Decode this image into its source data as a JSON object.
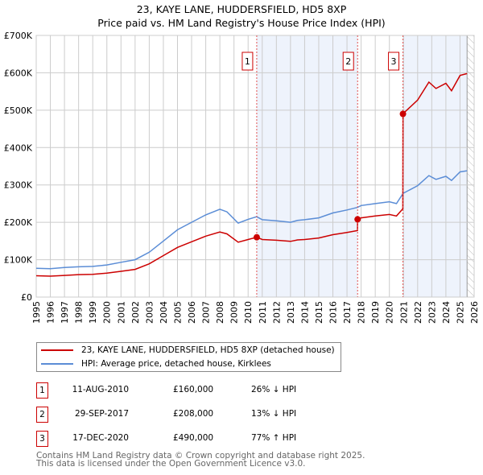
{
  "title": "23, KAYE LANE, HUDDERSFIELD, HD5 8XP",
  "subtitle": "Price paid vs. HM Land Registry's House Price Index (HPI)",
  "colors": {
    "property": "#cc0000",
    "hpi": "#5b8dd6",
    "shade": "#eef3fc",
    "grid": "#cccccc"
  },
  "chart_data": {
    "type": "line",
    "title": "23, KAYE LANE, HUDDERSFIELD, HD5 8XP — Price paid vs. HM Land Registry's House Price Index (HPI)",
    "xlabel": "",
    "ylabel": "",
    "xlim": [
      1995,
      2026
    ],
    "ylim": [
      0,
      700000
    ],
    "grid": true,
    "legend_position": "below",
    "x_ticks": [
      "1995",
      "1996",
      "1997",
      "1998",
      "1999",
      "2000",
      "2001",
      "2002",
      "2003",
      "2004",
      "2005",
      "2006",
      "2007",
      "2008",
      "2009",
      "2010",
      "2011",
      "2012",
      "2013",
      "2014",
      "2015",
      "2016",
      "2017",
      "2018",
      "2019",
      "2020",
      "2021",
      "2022",
      "2023",
      "2024",
      "2025",
      "2026"
    ],
    "y_ticks": [
      {
        "value": 0,
        "label": "£0"
      },
      {
        "value": 100000,
        "label": "£100K"
      },
      {
        "value": 200000,
        "label": "£200K"
      },
      {
        "value": 300000,
        "label": "£300K"
      },
      {
        "value": 400000,
        "label": "£400K"
      },
      {
        "value": 500000,
        "label": "£500K"
      },
      {
        "value": 600000,
        "label": "£600K"
      },
      {
        "value": 700000,
        "label": "£700K"
      }
    ],
    "shaded_ranges": [
      [
        2010.61,
        2017.75
      ],
      [
        2020.96,
        2025.5
      ]
    ],
    "hatched_from": 2025.5,
    "series": [
      {
        "name": "23, KAYE LANE, HUDDERSFIELD, HD5 8XP (detached house)",
        "color": "#cc0000",
        "x": [
          1995,
          1996,
          1997,
          1998,
          1999,
          2000,
          2001,
          2002,
          2003,
          2004,
          2005,
          2006,
          2007,
          2008,
          2008.5,
          2009.3,
          2010,
          2010.61,
          2011,
          2012,
          2013,
          2013.5,
          2014,
          2015,
          2016,
          2017,
          2017.74,
          2017.75,
          2018,
          2019,
          2020,
          2020.5,
          2020.95,
          2020.96,
          2021,
          2022,
          2022.8,
          2023.3,
          2024,
          2024.4,
          2025,
          2025.5
        ],
        "y": [
          57000,
          56000,
          58000,
          60000,
          61000,
          64000,
          69000,
          74000,
          89000,
          111000,
          133000,
          148000,
          163000,
          174000,
          169000,
          147000,
          154000,
          160000,
          154000,
          152000,
          149000,
          153000,
          154000,
          158000,
          167000,
          173000,
          178000,
          208000,
          212000,
          217000,
          221000,
          217000,
          236000,
          490000,
          492000,
          527000,
          575000,
          558000,
          572000,
          552000,
          593000,
          598000
        ]
      },
      {
        "name": "HPI: Average price, detached house, Kirklees",
        "color": "#5b8dd6",
        "x": [
          1995,
          1996,
          1997,
          1998,
          1999,
          2000,
          2001,
          2002,
          2003,
          2004,
          2005,
          2006,
          2007,
          2008,
          2008.5,
          2009.3,
          2010,
          2010.61,
          2011,
          2012,
          2013,
          2013.5,
          2014,
          2015,
          2016,
          2017,
          2017.75,
          2018,
          2019,
          2020,
          2020.5,
          2020.96,
          2021,
          2022,
          2022.8,
          2023.3,
          2024,
          2024.4,
          2025,
          2025.5
        ],
        "y": [
          77000,
          76000,
          79000,
          81000,
          82000,
          86000,
          93000,
          100000,
          120000,
          150000,
          180000,
          200000,
          220000,
          235000,
          228000,
          198000,
          208000,
          215000,
          207000,
          204000,
          200000,
          205000,
          207000,
          212000,
          225000,
          233000,
          240000,
          245000,
          250000,
          255000,
          250000,
          277000,
          278000,
          298000,
          325000,
          315000,
          323000,
          312000,
          335000,
          338000
        ]
      }
    ],
    "sales": [
      {
        "n": "1",
        "x": 2010.61,
        "y": 160000,
        "date": "11-AUG-2010",
        "price": "£160,000",
        "hpi": "26% ↓ HPI"
      },
      {
        "n": "2",
        "x": 2017.75,
        "y": 208000,
        "date": "29-SEP-2017",
        "price": "£208,000",
        "hpi": "13% ↓ HPI"
      },
      {
        "n": "3",
        "x": 2020.96,
        "y": 490000,
        "date": "17-DEC-2020",
        "price": "£490,000",
        "hpi": "77% ↑ HPI"
      }
    ]
  },
  "legend": {
    "property": "23, KAYE LANE, HUDDERSFIELD, HD5 8XP (detached house)",
    "hpi": "HPI: Average price, detached house, Kirklees"
  },
  "footer": {
    "line1": "Contains HM Land Registry data © Crown copyright and database right 2025.",
    "line2": "This data is licensed under the Open Government Licence v3.0."
  }
}
